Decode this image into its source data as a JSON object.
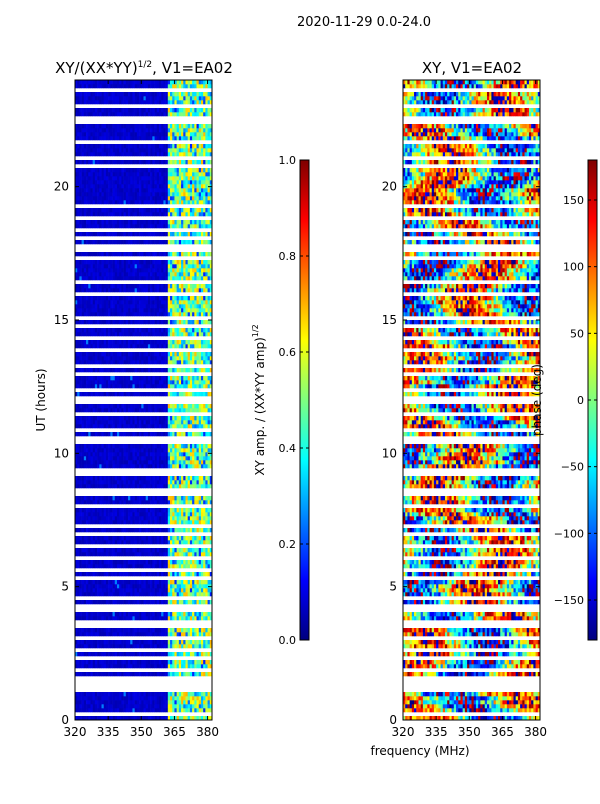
{
  "figure": {
    "suptitle": "2020-11-29 0.0-24.0",
    "xlabel": "frequency (MHz)",
    "ylabel": "UT (hours)"
  },
  "colors": {
    "jet": [
      "#00007f",
      "#0000ff",
      "#007fff",
      "#00ffff",
      "#7fff7f",
      "#ffff00",
      "#ff7f00",
      "#ff0000",
      "#7f0000"
    ],
    "gap": "#ffffff",
    "frame": "#000000"
  },
  "chart_data": [
    {
      "type": "heatmap",
      "panel": "amplitude",
      "title_text": "XY/(XX*YY)",
      "title_sup": "1/2",
      "title_suffix": ", V1=EA02",
      "xlim": [
        320,
        382
      ],
      "ylim": [
        0,
        24
      ],
      "xticks": [
        320,
        335,
        350,
        365,
        380
      ],
      "yticks": [
        0,
        5,
        10,
        15,
        20
      ],
      "colorbar": {
        "label_text": "XY amp. / (XX*YY amp)",
        "label_sup": "1/2",
        "range": [
          0.0,
          1.0
        ],
        "ticks": [
          "0.0",
          "0.2",
          "0.4",
          "0.6",
          "0.8",
          "1.0"
        ],
        "tick_values": [
          0.0,
          0.2,
          0.4,
          0.6,
          0.8,
          1.0
        ]
      },
      "band_mhz": [
        362,
        382
      ],
      "low_level": 0.05,
      "band_level_range": [
        0.3,
        0.7
      ]
    },
    {
      "type": "heatmap",
      "panel": "phase",
      "title_text": "XY, V1=EA02",
      "xlim": [
        320,
        382
      ],
      "ylim": [
        0,
        24
      ],
      "xticks": [
        320,
        335,
        350,
        365,
        380
      ],
      "yticks": [
        0,
        5,
        10,
        15,
        20
      ],
      "colorbar": {
        "label_text": "phase (deg)",
        "range": [
          -180,
          180
        ],
        "ticks": [
          "−150",
          "−100",
          "−50",
          "0",
          "50",
          "100",
          "150"
        ],
        "tick_values": [
          -150,
          -100,
          -50,
          0,
          50,
          100,
          150
        ]
      }
    }
  ],
  "gaps_ut": [
    0.3,
    1.2,
    1.5,
    1.9,
    2.4,
    2.6,
    3.1,
    3.5,
    3.7,
    4.1,
    4.3,
    4.6,
    5.3,
    5.6,
    6.1,
    6.5,
    6.9,
    7.3,
    7.8,
    8.1,
    8.4,
    8.7,
    9.2,
    9.4,
    10.5,
    10.9,
    11.5,
    12.0,
    12.4,
    12.9,
    13.3,
    13.8,
    14.3,
    14.8,
    15.1,
    15.9,
    16.4,
    17.3,
    17.7,
    18.1,
    18.4,
    18.9,
    19.3,
    20.8,
    21.1,
    21.7,
    22.5,
    23.0,
    23.6
  ]
}
